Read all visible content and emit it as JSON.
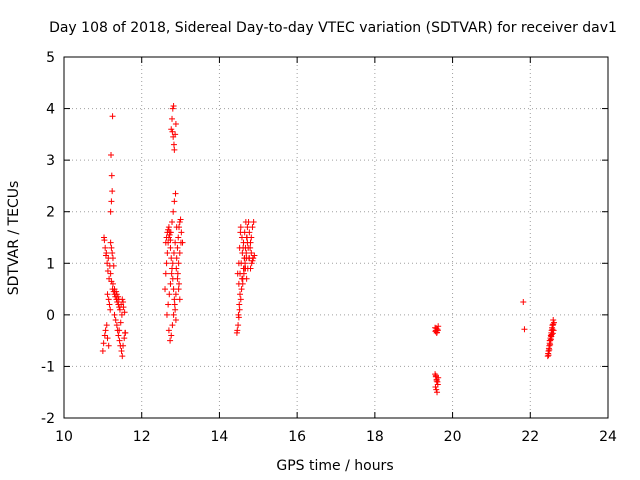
{
  "chart_data": {
    "type": "scatter",
    "title": "Day 108 of 2018, Sidereal Day-to-day VTEC variation (SDTVAR) for receiver dav1",
    "xlabel": "GPS time / hours",
    "ylabel": "SDTVAR / TECUs",
    "xlim": [
      10,
      24
    ],
    "ylim": [
      -2,
      5
    ],
    "xticks": [
      10,
      12,
      14,
      16,
      18,
      20,
      22,
      24
    ],
    "yticks": [
      -2,
      -1,
      0,
      1,
      2,
      3,
      4,
      5
    ],
    "grid": true,
    "marker": "+",
    "series": [
      {
        "name": "SDTVAR",
        "color": "#ff0000",
        "x": [
          11.0,
          11.02,
          11.05,
          11.07,
          11.1,
          11.12,
          11.15,
          11.03,
          11.06,
          11.08,
          11.11,
          11.13,
          11.16,
          11.04,
          11.09,
          11.14,
          11.18,
          11.2,
          11.22,
          11.25,
          11.2,
          11.22,
          11.24,
          11.23,
          11.21,
          11.25,
          11.28,
          11.3,
          11.32,
          11.35,
          11.37,
          11.4,
          11.42,
          11.3,
          11.33,
          11.36,
          11.38,
          11.4,
          11.43,
          11.45,
          11.48,
          11.5,
          11.52,
          11.55,
          11.57,
          11.44,
          11.47,
          11.5,
          11.53,
          11.56,
          11.42,
          11.46,
          11.49,
          11.52,
          11.58,
          11.2,
          11.22,
          11.26,
          11.28,
          11.24,
          11.3,
          11.34,
          11.36,
          11.39,
          11.41,
          11.12,
          11.15,
          11.17,
          11.19,
          11.26,
          12.6,
          12.62,
          12.64,
          12.66,
          12.68,
          12.7,
          12.72,
          12.74,
          12.76,
          12.78,
          12.8,
          12.82,
          12.84,
          12.86,
          12.88,
          12.9,
          12.92,
          12.94,
          12.96,
          12.98,
          13.0,
          13.02,
          13.05,
          12.65,
          12.68,
          12.71,
          12.74,
          12.77,
          12.8,
          12.83,
          12.86,
          12.89,
          12.92,
          12.95,
          12.98,
          12.7,
          12.73,
          12.76,
          12.79,
          12.82,
          12.85,
          12.88,
          12.75,
          12.78,
          12.81,
          12.84,
          12.87,
          12.9,
          12.76,
          12.78,
          12.8,
          12.82,
          12.79,
          12.81,
          12.83,
          12.84,
          12.86,
          12.88,
          12.62,
          12.64,
          12.66,
          12.68,
          12.7,
          12.72,
          12.74,
          12.95,
          12.98,
          13.01,
          12.93,
          12.96,
          14.45,
          14.48,
          14.5,
          14.52,
          14.55,
          14.57,
          14.6,
          14.62,
          14.65,
          14.67,
          14.7,
          14.72,
          14.75,
          14.77,
          14.8,
          14.82,
          14.85,
          14.87,
          14.9,
          14.5,
          14.53,
          14.56,
          14.59,
          14.62,
          14.65,
          14.68,
          14.71,
          14.74,
          14.77,
          14.8,
          14.83,
          14.86,
          14.55,
          14.58,
          14.61,
          14.64,
          14.67,
          14.7,
          14.73,
          14.76,
          14.79,
          14.82,
          14.85,
          14.88,
          14.47,
          14.5,
          14.52,
          14.54,
          14.46,
          14.49,
          14.51,
          14.53,
          14.6,
          14.63,
          14.66,
          14.69,
          14.72,
          14.58,
          14.64,
          14.7,
          19.55,
          19.57,
          19.59,
          19.61,
          19.63,
          19.56,
          19.58,
          19.6,
          19.62,
          19.55,
          19.57,
          19.59,
          19.61,
          19.63,
          19.56,
          19.58,
          19.6,
          19.62,
          19.57,
          19.59,
          21.82,
          21.85,
          22.45,
          22.47,
          22.49,
          22.51,
          22.53,
          22.55,
          22.57,
          22.59,
          22.61,
          22.46,
          22.48,
          22.5,
          22.52,
          22.54,
          22.56,
          22.58,
          22.6,
          22.47,
          22.49,
          22.51,
          22.53,
          22.55,
          22.57,
          22.59,
          22.5,
          22.54,
          22.58
        ],
        "y": [
          -0.7,
          -0.55,
          -0.4,
          -0.3,
          -0.2,
          -0.45,
          -0.6,
          1.5,
          1.3,
          1.15,
          1.0,
          0.85,
          0.7,
          1.45,
          1.2,
          1.1,
          0.95,
          0.8,
          0.65,
          0.5,
          2.0,
          2.2,
          2.4,
          2.7,
          3.1,
          3.85,
          0.45,
          0.4,
          0.35,
          0.3,
          0.25,
          0.2,
          0.15,
          0.0,
          -0.1,
          -0.2,
          -0.3,
          -0.4,
          -0.5,
          -0.6,
          -0.7,
          -0.8,
          -0.6,
          -0.45,
          -0.35,
          0.1,
          0.2,
          0.3,
          0.15,
          0.05,
          -0.3,
          -0.15,
          0.0,
          0.25,
          -0.35,
          1.4,
          1.3,
          1.1,
          0.95,
          1.2,
          0.5,
          0.45,
          0.4,
          0.35,
          0.3,
          0.4,
          0.3,
          0.2,
          0.1,
          0.6,
          0.5,
          0.8,
          1.0,
          1.2,
          1.4,
          1.5,
          1.6,
          1.3,
          1.1,
          0.9,
          0.7,
          0.5,
          0.3,
          0.1,
          -0.1,
          1.1,
          1.3,
          1.5,
          1.7,
          1.8,
          1.85,
          1.6,
          1.4,
          0.0,
          0.2,
          0.4,
          0.6,
          0.8,
          1.0,
          1.2,
          1.4,
          0.9,
          0.7,
          0.5,
          0.3,
          -0.3,
          -0.5,
          -0.4,
          -0.2,
          0.0,
          0.2,
          0.4,
          1.6,
          1.8,
          2.0,
          2.2,
          2.35,
          1.7,
          3.6,
          3.8,
          4.0,
          4.05,
          3.55,
          3.45,
          3.3,
          3.2,
          3.5,
          3.7,
          1.4,
          1.5,
          1.6,
          1.65,
          1.7,
          1.55,
          1.45,
          1.0,
          1.2,
          1.4,
          0.8,
          0.6,
          -0.35,
          -0.2,
          -0.05,
          0.1,
          0.3,
          0.5,
          0.7,
          0.9,
          1.1,
          1.3,
          1.5,
          1.7,
          1.8,
          1.6,
          1.4,
          1.2,
          1.05,
          1.1,
          1.15,
          0.6,
          0.8,
          1.0,
          1.2,
          1.4,
          1.6,
          1.8,
          1.5,
          1.3,
          1.1,
          0.9,
          1.0,
          1.1,
          1.7,
          1.5,
          1.3,
          1.1,
          0.9,
          0.7,
          0.9,
          1.1,
          1.3,
          1.5,
          1.7,
          1.8,
          0.8,
          1.0,
          1.3,
          1.6,
          -0.3,
          0.0,
          0.2,
          0.4,
          0.6,
          0.8,
          1.0,
          1.2,
          1.4,
          0.7,
          0.9,
          1.1,
          -0.25,
          -0.3,
          -0.35,
          -0.28,
          -0.22,
          -0.32,
          -0.26,
          -0.34,
          -0.3,
          -1.15,
          -1.2,
          -1.25,
          -1.3,
          -1.22,
          -1.4,
          -1.45,
          -1.5,
          -1.35,
          -1.18,
          -1.28,
          0.25,
          -0.28,
          -0.8,
          -0.7,
          -0.6,
          -0.5,
          -0.4,
          -0.3,
          -0.2,
          -0.1,
          -0.15,
          -0.75,
          -0.65,
          -0.55,
          -0.45,
          -0.35,
          -0.25,
          -0.2,
          -0.3,
          -0.78,
          -0.68,
          -0.58,
          -0.48,
          -0.38,
          -0.28,
          -0.18,
          -0.5,
          -0.42,
          -0.36
        ]
      }
    ]
  }
}
